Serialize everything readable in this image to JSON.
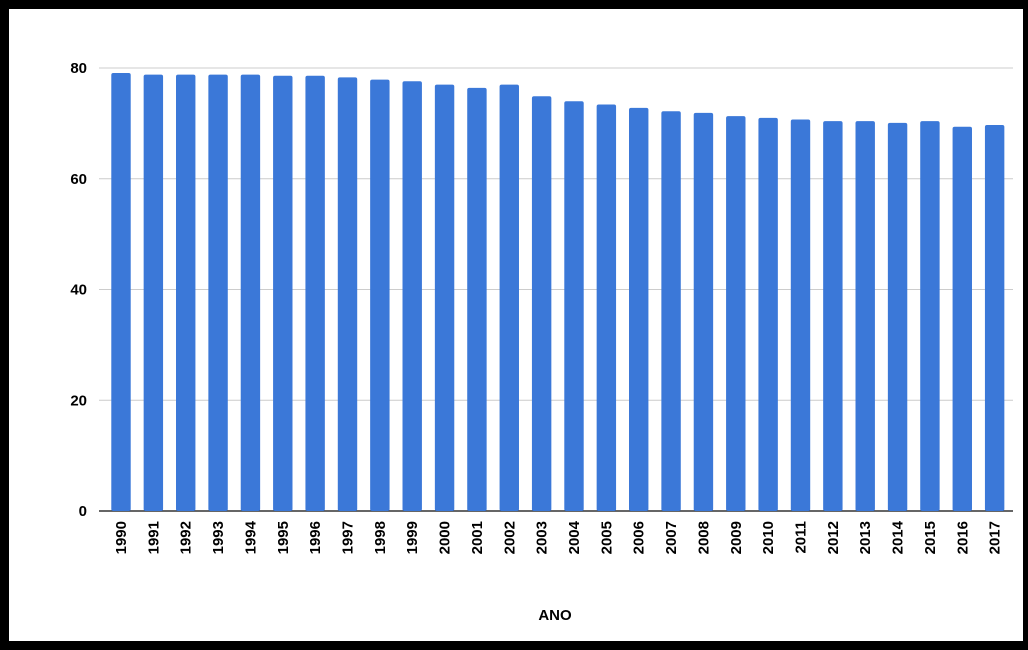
{
  "chart_data": {
    "type": "bar",
    "categories": [
      "1990",
      "1991",
      "1992",
      "1993",
      "1994",
      "1995",
      "1996",
      "1997",
      "1998",
      "1999",
      "2000",
      "2001",
      "2002",
      "2003",
      "2004",
      "2005",
      "2006",
      "2007",
      "2008",
      "2009",
      "2010",
      "2011",
      "2012",
      "2013",
      "2014",
      "2015",
      "2016",
      "2017"
    ],
    "values": [
      79.1,
      78.8,
      78.8,
      78.8,
      78.8,
      78.6,
      78.6,
      78.3,
      77.9,
      77.6,
      77.0,
      76.4,
      77.0,
      74.9,
      74.0,
      73.4,
      72.8,
      72.2,
      71.9,
      71.3,
      71.0,
      70.7,
      70.4,
      70.4,
      70.1,
      70.4,
      69.4,
      69.7
    ],
    "xlabel": "ANO",
    "ylabel": "",
    "ylim": [
      0,
      80
    ],
    "yticks": [
      0,
      20,
      40,
      60,
      80
    ],
    "grid": true,
    "bar_color": "#3b78d8",
    "grid_color": "#cccccc"
  }
}
